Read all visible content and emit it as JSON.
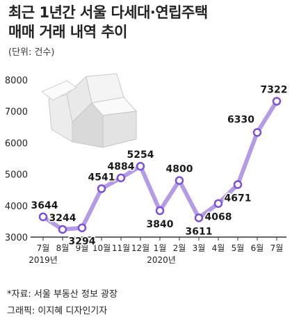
{
  "header": {
    "title_line1": "최근 1년간 서울 다세대·연립주택",
    "title_line2": "매매 거래 내역 추이",
    "unit": "(단위: 건수)"
  },
  "footer": {
    "source": "*자료: 서울 부동산 정보 광장",
    "credit": "그래픽: 이지혜 디자인기자"
  },
  "colors": {
    "line": "#b49be6",
    "marker_stroke": "#7d4fd6",
    "marker_fill": "#ffffff",
    "axis": "#333333"
  },
  "illustration": {
    "icon": "house-icon"
  },
  "chart_data": {
    "type": "line",
    "title": "최근 1년간 서울 다세대·연립주택 매매 거래 내역 추이",
    "ylabel": "(단위: 건수)",
    "categories": [
      "7월",
      "8월",
      "9월",
      "10월",
      "11월",
      "12월",
      "1월",
      "2월",
      "3월",
      "4월",
      "5월",
      "6월",
      "7월"
    ],
    "year_labels": [
      "2019년",
      "2020년"
    ],
    "values": [
      3644,
      3244,
      3294,
      4541,
      4884,
      5254,
      3840,
      4800,
      3611,
      4068,
      4671,
      6330,
      7322
    ],
    "data_labels": [
      "3644",
      "3244",
      "3294",
      "4541",
      "4884",
      "5254",
      "3840",
      "4800",
      "3611",
      "4068",
      "4671",
      "6330",
      "7322"
    ],
    "ylim": [
      3000,
      8000
    ],
    "yticks": [
      3000,
      4000,
      5000,
      6000,
      7000,
      8000
    ],
    "grid": false
  }
}
